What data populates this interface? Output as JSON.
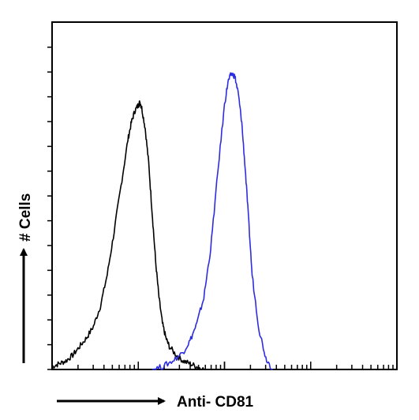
{
  "chart_data": {
    "type": "line",
    "title": "",
    "xlabel": "Anti- CD81",
    "ylabel": "# Cells",
    "xscale": "log",
    "xlim": [
      0,
      1
    ],
    "ylim": [
      0,
      1
    ],
    "grid": false,
    "legend": "none",
    "series": [
      {
        "color": "#000000",
        "x": [
          0.0,
          0.02,
          0.04,
          0.06,
          0.08,
          0.1,
          0.12,
          0.14,
          0.16,
          0.18,
          0.2,
          0.22,
          0.23,
          0.24,
          0.25,
          0.255,
          0.26,
          0.27,
          0.28,
          0.29,
          0.3,
          0.31,
          0.32,
          0.33,
          0.34,
          0.36,
          0.38,
          0.4,
          0.42,
          0.44
        ],
        "y": [
          0.01,
          0.02,
          0.03,
          0.05,
          0.08,
          0.11,
          0.15,
          0.22,
          0.33,
          0.48,
          0.64,
          0.8,
          0.86,
          0.9,
          0.92,
          0.93,
          0.91,
          0.84,
          0.72,
          0.55,
          0.38,
          0.25,
          0.16,
          0.11,
          0.08,
          0.05,
          0.03,
          0.02,
          0.01,
          0.0
        ]
      },
      {
        "color": "#2d2de0",
        "x": [
          0.29,
          0.32,
          0.35,
          0.38,
          0.4,
          0.42,
          0.44,
          0.46,
          0.48,
          0.5,
          0.51,
          0.52,
          0.53,
          0.54,
          0.55,
          0.56,
          0.57,
          0.58,
          0.6,
          0.62,
          0.64
        ],
        "y": [
          0.0,
          0.01,
          0.03,
          0.06,
          0.1,
          0.16,
          0.25,
          0.42,
          0.68,
          0.92,
          1.0,
          1.03,
          1.02,
          0.96,
          0.86,
          0.7,
          0.52,
          0.33,
          0.14,
          0.04,
          0.0
        ]
      }
    ]
  }
}
